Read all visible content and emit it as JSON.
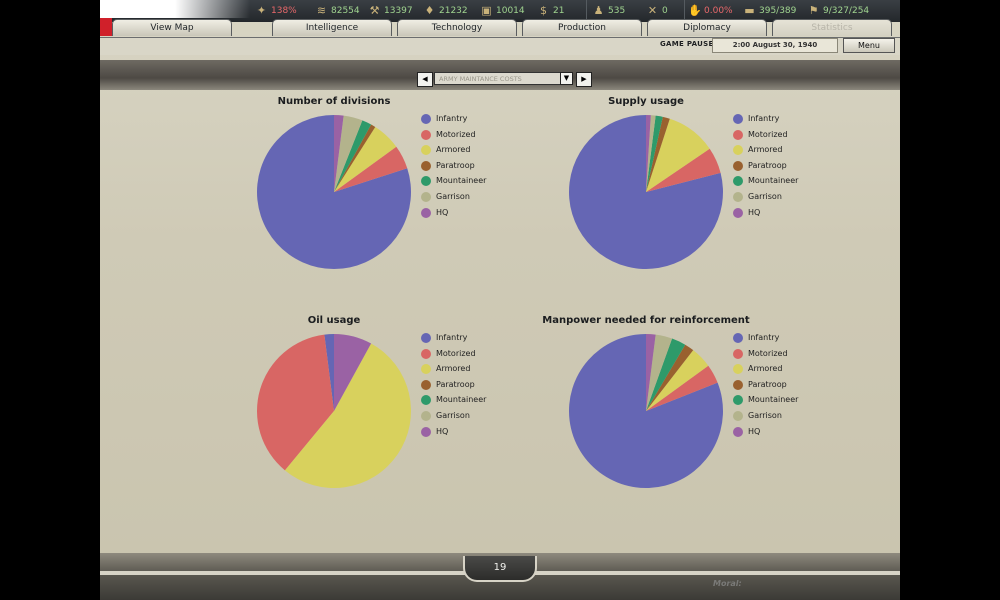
{
  "resources": [
    {
      "icon": "leadership-icon",
      "glyph": "✦",
      "value": "138%",
      "color": "red"
    },
    {
      "icon": "metal-icon",
      "glyph": "≋",
      "value": "82554",
      "color": "green"
    },
    {
      "icon": "energy-icon",
      "glyph": "⚒",
      "value": "13397",
      "color": "green"
    },
    {
      "icon": "oil-icon",
      "glyph": "♦",
      "value": "21232",
      "color": "green"
    },
    {
      "icon": "supplies-icon",
      "glyph": "▣",
      "value": "10014",
      "color": "green"
    },
    {
      "icon": "money-icon",
      "glyph": "$",
      "value": "21",
      "color": "green"
    },
    {
      "icon": "manpower-icon",
      "glyph": "♟",
      "value": "535",
      "color": "green"
    },
    {
      "icon": "transport-icon",
      "glyph": "✕",
      "value": "0",
      "color": "green"
    },
    {
      "icon": "dissent-icon",
      "glyph": "✋",
      "value": "0.00%",
      "color": "red"
    },
    {
      "icon": "ic-icon",
      "glyph": "▬",
      "value": "395/389",
      "color": "green"
    },
    {
      "icon": "convoy-icon",
      "glyph": "⚑",
      "value": "9/327/254",
      "color": "green"
    }
  ],
  "tabs": [
    "View Map",
    "Intelligence",
    "Technology",
    "Production",
    "Diplomacy",
    "Statistics"
  ],
  "status": {
    "paused": "GAME PAUSED",
    "date": "2:00 August 30, 1940",
    "menu": "Menu"
  },
  "selector": {
    "value": "ARMY MAINTANCE COSTS",
    "prev": "◀",
    "next": "▶",
    "arrow": "▼"
  },
  "page_number": "19",
  "moral_text": "Moral:",
  "colors": {
    "Infantry": "#6566b4",
    "Motorized": "#d86664",
    "Armored": "#d8d15d",
    "Paratroop": "#99612f",
    "Mountaineer": "#2e9a6a",
    "Garrison": "#b3b38c",
    "HQ": "#9a62a4"
  },
  "chart_data": [
    {
      "type": "pie",
      "title": "Number of divisions",
      "labels": [
        "Infantry",
        "Motorized",
        "Armored",
        "Paratroop",
        "Mountaineer",
        "Garrison",
        "HQ"
      ],
      "values": [
        80,
        5,
        6,
        1,
        2,
        4,
        2
      ]
    },
    {
      "type": "pie",
      "title": "Supply usage",
      "labels": [
        "Infantry",
        "Motorized",
        "Armored",
        "Paratroop",
        "Mountaineer",
        "Garrison",
        "HQ"
      ],
      "values": [
        79,
        5.5,
        10.5,
        1.5,
        1.5,
        1,
        1
      ]
    },
    {
      "type": "pie",
      "title": "Oil usage",
      "labels": [
        "Infantry",
        "Motorized",
        "Armored",
        "Paratroop",
        "Mountaineer",
        "Garrison",
        "HQ"
      ],
      "values": [
        2,
        37,
        53,
        0,
        0,
        0,
        8
      ]
    },
    {
      "type": "pie",
      "title": "Manpower needed for reinforcement",
      "labels": [
        "Infantry",
        "Motorized",
        "Armored",
        "Paratroop",
        "Mountaineer",
        "Garrison",
        "HQ"
      ],
      "values": [
        81,
        4,
        4.5,
        2,
        3,
        3.5,
        2
      ]
    }
  ]
}
